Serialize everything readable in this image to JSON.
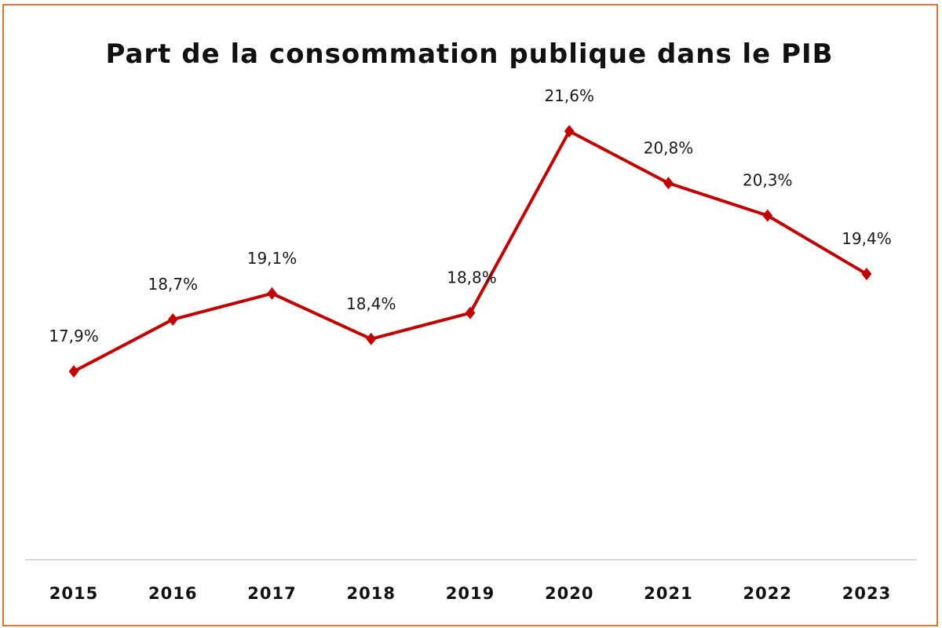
{
  "chart_data": {
    "type": "line",
    "title": "Part de la consommation publique dans le PIB",
    "xlabel": "",
    "ylabel": "",
    "categories": [
      "2015",
      "2016",
      "2017",
      "2018",
      "2019",
      "2020",
      "2021",
      "2022",
      "2023"
    ],
    "series": [
      {
        "name": "Part de la consommation publique dans le PIB",
        "values": [
          17.9,
          18.7,
          19.1,
          18.4,
          18.8,
          21.6,
          20.8,
          20.3,
          19.4
        ],
        "labels": [
          "17,9%",
          "18,7%",
          "19,1%",
          "18,4%",
          "18,8%",
          "21,6%",
          "20,8%",
          "20,3%",
          "19,4%"
        ],
        "color": "#c00000",
        "marker": "diamond"
      }
    ],
    "ylim": [
      15,
      22
    ],
    "grid": false,
    "legend": "none",
    "frame_color": "#e8732a",
    "axis_color": "#d9d9d9"
  }
}
